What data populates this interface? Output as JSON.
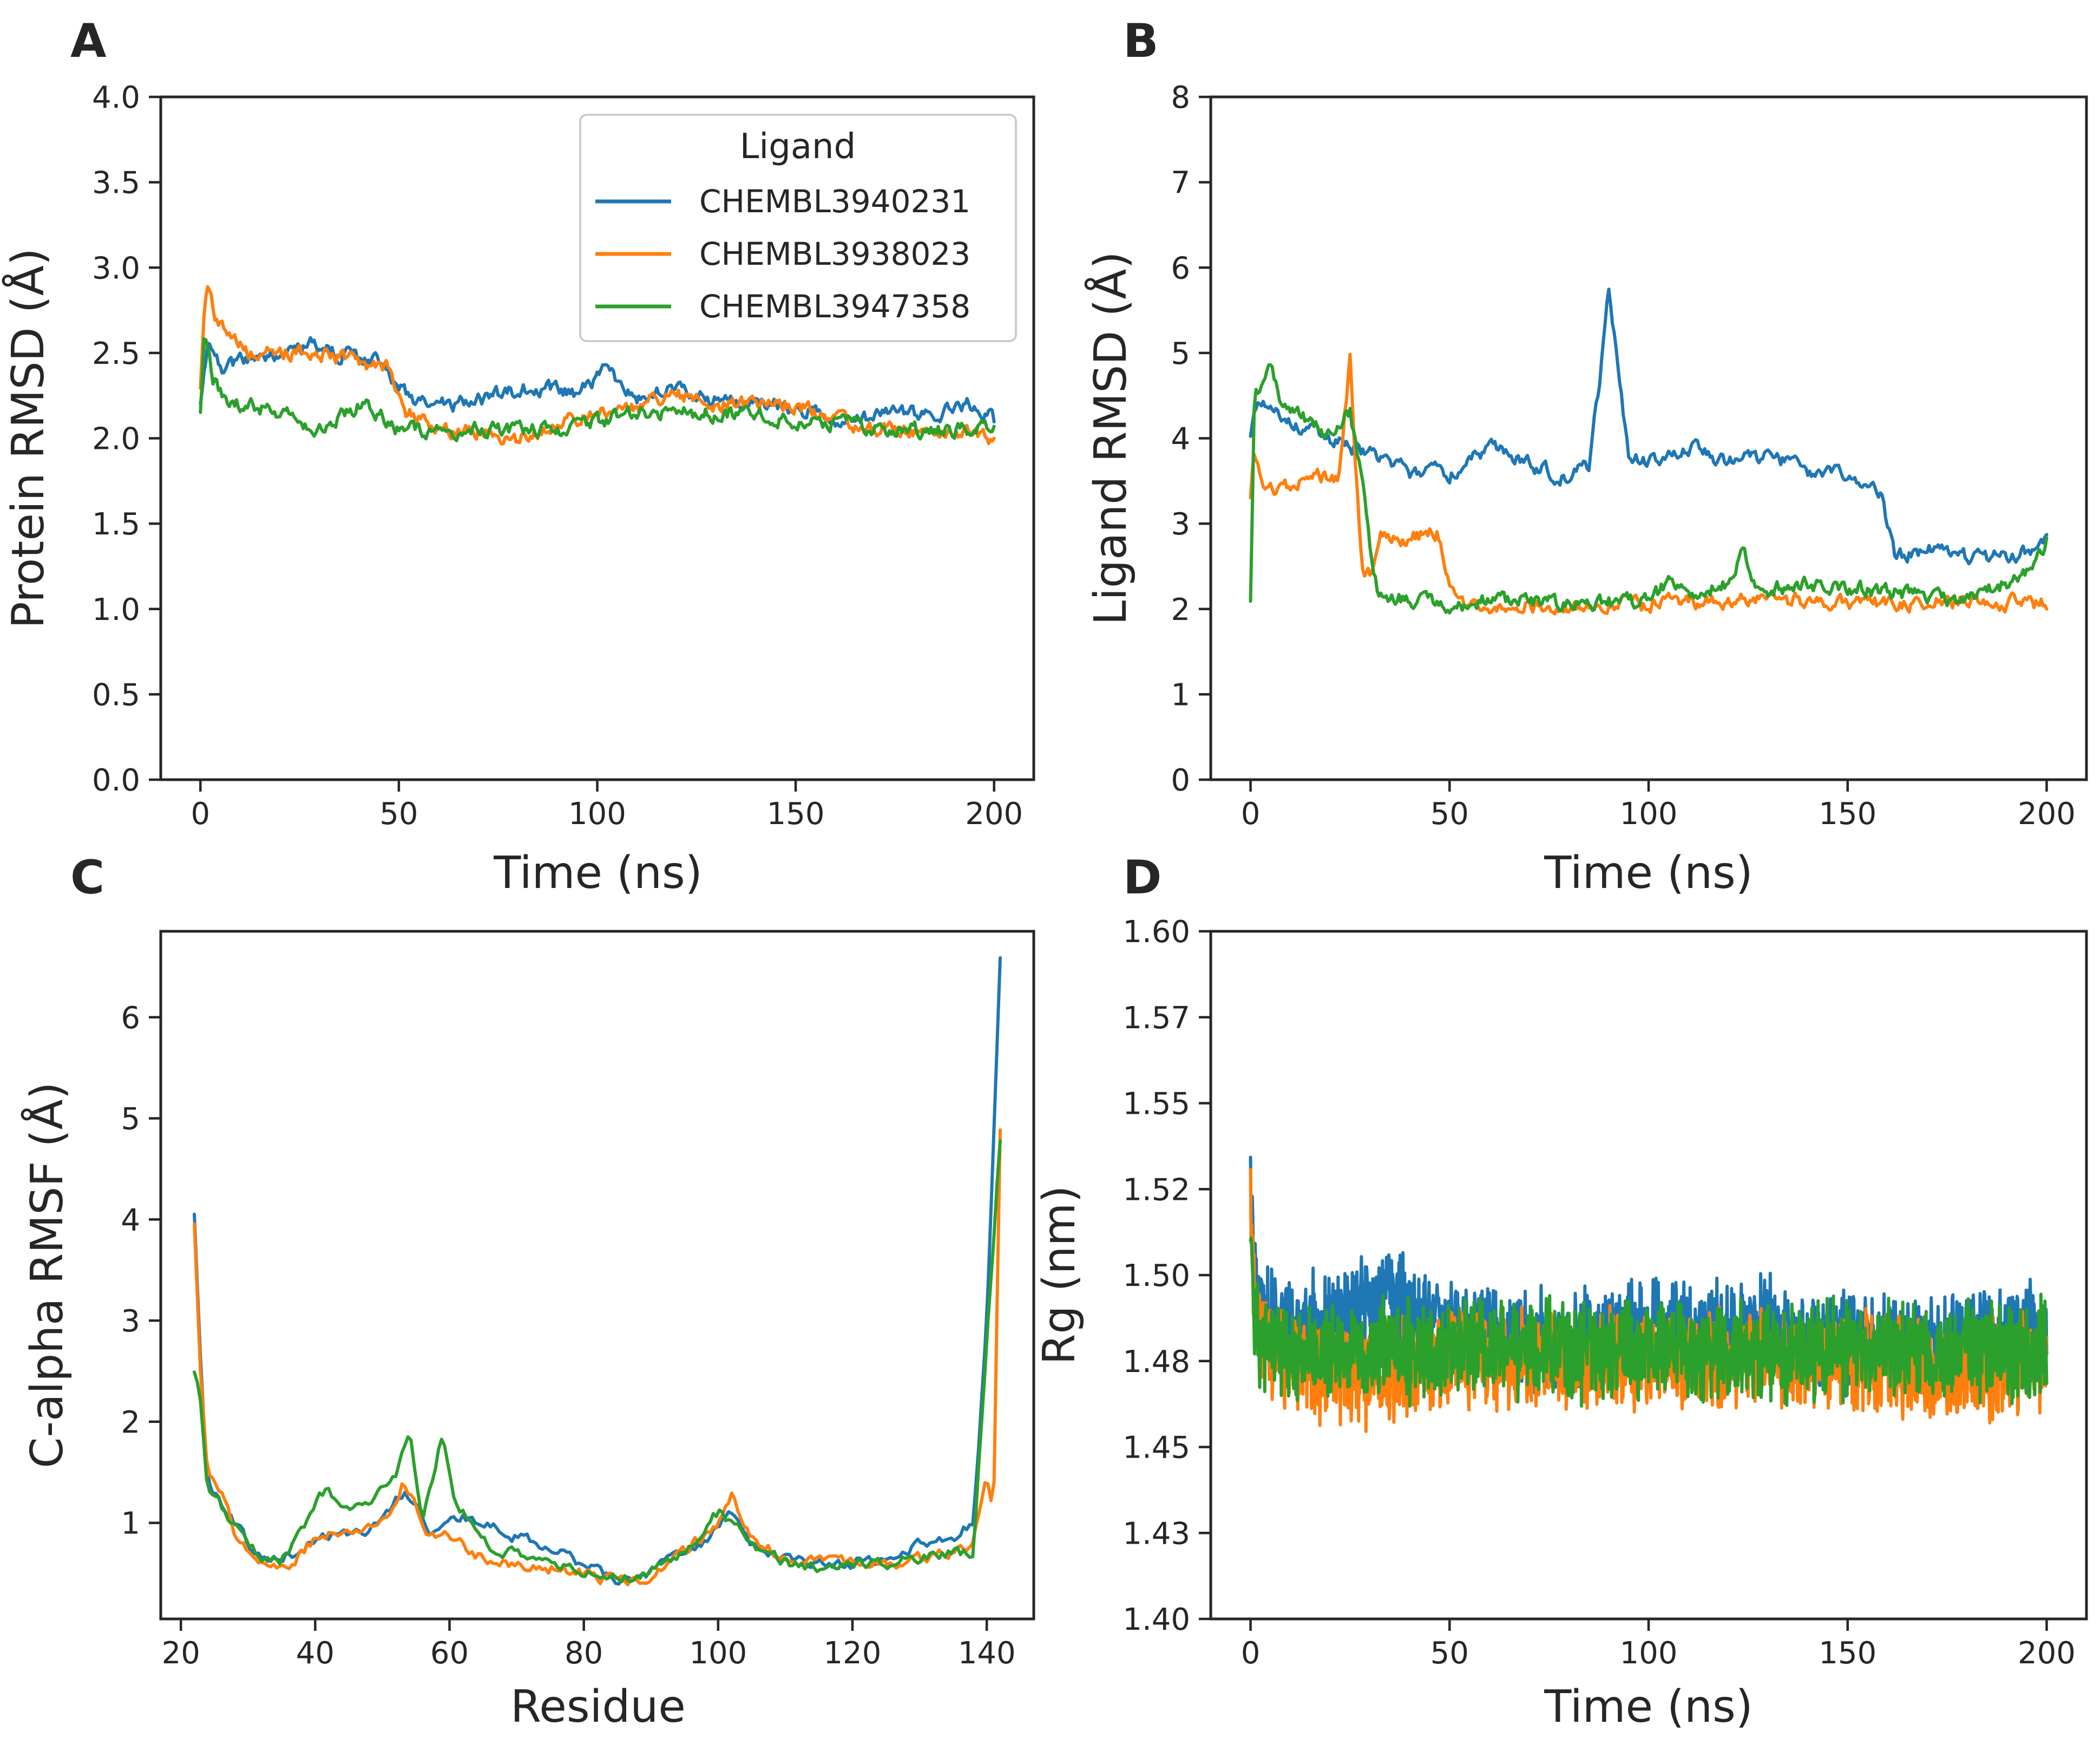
{
  "colors": {
    "CHEMBL3940231": "#1f77b4",
    "CHEMBL3938023": "#ff7f0e",
    "CHEMBL3947358": "#2ca02c"
  },
  "legend": {
    "title": "Ligand",
    "entries": [
      "CHEMBL3940231",
      "CHEMBL3938023",
      "CHEMBL3947358"
    ]
  },
  "chart_data": [
    {
      "panel": "A",
      "type": "line",
      "xlabel": "Time (ns)",
      "ylabel": "Protein RMSD (Å)",
      "xlim": [
        -10,
        210
      ],
      "ylim": [
        0,
        4
      ],
      "xticks": [
        0,
        50,
        100,
        150,
        200
      ],
      "xtick_labels": [
        "0",
        "50",
        "100",
        "150",
        "200"
      ],
      "yticks": [
        0,
        0.5,
        1,
        1.5,
        2,
        2.5,
        3,
        3.5,
        4
      ],
      "ytick_labels": [
        "0.0",
        "0.5",
        "1.0",
        "1.5",
        "2.0",
        "2.5",
        "3.0",
        "3.5",
        "4.0"
      ],
      "noise": 0.045,
      "series": [
        {
          "name": "CHEMBL3940231",
          "x": [
            0,
            2,
            5,
            10,
            20,
            28,
            35,
            45,
            50,
            55,
            65,
            75,
            85,
            95,
            102,
            110,
            115,
            125,
            135,
            145,
            155,
            165,
            175,
            185,
            195,
            200
          ],
          "y": [
            2.2,
            2.55,
            2.4,
            2.45,
            2.5,
            2.55,
            2.5,
            2.45,
            2.3,
            2.2,
            2.2,
            2.25,
            2.3,
            2.25,
            2.4,
            2.2,
            2.3,
            2.25,
            2.2,
            2.2,
            2.15,
            2.1,
            2.15,
            2.15,
            2.2,
            2.1
          ]
        },
        {
          "name": "CHEMBL3938023",
          "x": [
            0,
            1,
            2,
            4,
            8,
            12,
            20,
            30,
            40,
            48,
            52,
            60,
            70,
            80,
            90,
            100,
            110,
            120,
            130,
            140,
            150,
            160,
            170,
            180,
            190,
            200
          ],
          "y": [
            2.3,
            2.75,
            2.85,
            2.7,
            2.6,
            2.5,
            2.5,
            2.5,
            2.45,
            2.4,
            2.15,
            2.05,
            2.05,
            2.0,
            2.1,
            2.15,
            2.2,
            2.25,
            2.2,
            2.2,
            2.2,
            2.1,
            2.05,
            2.05,
            2.05,
            2.0
          ]
        },
        {
          "name": "CHEMBL3947358",
          "x": [
            0,
            1,
            3,
            6,
            10,
            20,
            30,
            40,
            45,
            50,
            60,
            70,
            80,
            90,
            100,
            110,
            120,
            130,
            140,
            150,
            160,
            170,
            180,
            190,
            200
          ],
          "y": [
            2.15,
            2.6,
            2.35,
            2.25,
            2.2,
            2.15,
            2.05,
            2.2,
            2.15,
            2.05,
            2.05,
            2.05,
            2.05,
            2.05,
            2.1,
            2.15,
            2.15,
            2.15,
            2.15,
            2.1,
            2.1,
            2.05,
            2.05,
            2.05,
            2.05
          ]
        }
      ]
    },
    {
      "panel": "B",
      "type": "line",
      "xlabel": "Time (ns)",
      "ylabel": "Ligand RMSD (Å)",
      "xlim": [
        -10,
        210
      ],
      "ylim": [
        0,
        8
      ],
      "xticks": [
        0,
        50,
        100,
        150,
        200
      ],
      "xtick_labels": [
        "0",
        "50",
        "100",
        "150",
        "200"
      ],
      "yticks": [
        0,
        1,
        2,
        3,
        4,
        5,
        6,
        7,
        8
      ],
      "ytick_labels": [
        "0",
        "1",
        "2",
        "3",
        "4",
        "5",
        "6",
        "7",
        "8"
      ],
      "noise": 0.09,
      "series": [
        {
          "name": "CHEMBL3940231",
          "x": [
            0,
            2,
            5,
            10,
            20,
            30,
            40,
            50,
            60,
            70,
            80,
            85,
            88,
            90,
            92,
            95,
            100,
            110,
            120,
            130,
            140,
            150,
            158,
            162,
            170,
            180,
            190,
            200
          ],
          "y": [
            4.0,
            4.5,
            4.3,
            4.2,
            4.0,
            3.8,
            3.6,
            3.6,
            3.9,
            3.7,
            3.5,
            3.7,
            4.8,
            5.7,
            5.0,
            3.8,
            3.7,
            3.9,
            3.7,
            3.8,
            3.6,
            3.6,
            3.4,
            2.6,
            2.7,
            2.6,
            2.6,
            2.8
          ]
        },
        {
          "name": "CHEMBL3938023",
          "x": [
            0,
            1,
            3,
            8,
            15,
            22,
            25,
            27,
            28,
            30,
            33,
            38,
            45,
            47,
            50,
            52,
            60,
            80,
            100,
            120,
            140,
            160,
            180,
            200
          ],
          "y": [
            3.3,
            3.9,
            3.4,
            3.4,
            3.6,
            3.5,
            4.9,
            3.2,
            2.5,
            2.4,
            2.9,
            2.8,
            2.9,
            2.9,
            2.3,
            2.1,
            2.05,
            2.05,
            2.05,
            2.1,
            2.1,
            2.05,
            2.1,
            2.05
          ]
        },
        {
          "name": "CHEMBL3947358",
          "x": [
            0,
            1,
            3,
            5,
            8,
            12,
            20,
            25,
            28,
            30,
            32,
            40,
            50,
            60,
            80,
            100,
            105,
            110,
            120,
            124,
            126,
            140,
            160,
            180,
            195,
            200
          ],
          "y": [
            2.05,
            4.5,
            4.6,
            4.9,
            4.4,
            4.3,
            4.0,
            4.3,
            3.5,
            2.7,
            2.2,
            2.1,
            2.05,
            2.1,
            2.05,
            2.1,
            2.3,
            2.2,
            2.3,
            2.7,
            2.2,
            2.3,
            2.2,
            2.1,
            2.4,
            2.8
          ]
        }
      ]
    },
    {
      "panel": "C",
      "type": "line",
      "xlabel": "Residue",
      "ylabel": "C-alpha RMSF (Å)",
      "xlim": [
        17,
        147
      ],
      "ylim": [
        0.05,
        6.85
      ],
      "xticks": [
        20,
        40,
        60,
        80,
        100,
        120,
        140
      ],
      "xtick_labels": [
        "20",
        "40",
        "60",
        "80",
        "100",
        "120",
        "140"
      ],
      "yticks": [
        1,
        2,
        3,
        4,
        5,
        6
      ],
      "ytick_labels": [
        "1",
        "2",
        "3",
        "4",
        "5",
        "6"
      ],
      "noise": 0.06,
      "series": [
        {
          "name": "CHEMBL3940231",
          "x": [
            22,
            23,
            24,
            26,
            28,
            30,
            32,
            35,
            38,
            40,
            45,
            50,
            53,
            55,
            57,
            60,
            65,
            70,
            75,
            80,
            85,
            90,
            95,
            100,
            102,
            105,
            110,
            115,
            120,
            125,
            130,
            135,
            138,
            140,
            142
          ],
          "y": [
            4.1,
            2.5,
            1.4,
            1.2,
            1.0,
            0.8,
            0.7,
            0.65,
            0.75,
            0.85,
            0.9,
            1.0,
            1.3,
            1.2,
            0.9,
            1.1,
            1.0,
            0.85,
            0.75,
            0.55,
            0.45,
            0.5,
            0.7,
            0.95,
            1.1,
            0.8,
            0.65,
            0.6,
            0.6,
            0.65,
            0.8,
            0.85,
            1.0,
            3.0,
            6.55
          ]
        },
        {
          "name": "CHEMBL3938023",
          "x": [
            22,
            23,
            24,
            26,
            28,
            30,
            32,
            35,
            38,
            40,
            45,
            50,
            53,
            55,
            57,
            60,
            65,
            70,
            75,
            80,
            85,
            90,
            95,
            100,
            102,
            105,
            110,
            115,
            120,
            125,
            130,
            135,
            138,
            140,
            141,
            142
          ],
          "y": [
            4.0,
            2.4,
            1.5,
            1.3,
            0.9,
            0.75,
            0.6,
            0.5,
            0.7,
            0.85,
            0.9,
            1.0,
            1.4,
            1.2,
            0.9,
            0.85,
            0.65,
            0.6,
            0.55,
            0.5,
            0.42,
            0.48,
            0.7,
            1.0,
            1.25,
            0.85,
            0.65,
            0.6,
            0.6,
            0.6,
            0.65,
            0.7,
            0.75,
            1.5,
            1.1,
            4.9
          ]
        },
        {
          "name": "CHEMBL3947358",
          "x": [
            22,
            23,
            24,
            26,
            28,
            30,
            32,
            35,
            38,
            40,
            42,
            45,
            50,
            52,
            54,
            56,
            58,
            59,
            61,
            65,
            70,
            75,
            80,
            85,
            90,
            95,
            100,
            102,
            105,
            110,
            115,
            120,
            125,
            130,
            135,
            138,
            140,
            142
          ],
          "y": [
            2.5,
            2.2,
            1.3,
            1.15,
            1.0,
            0.8,
            0.7,
            0.65,
            0.9,
            1.2,
            1.35,
            1.1,
            1.3,
            1.5,
            1.9,
            1.0,
            1.6,
            1.9,
            1.2,
            0.8,
            0.7,
            0.6,
            0.5,
            0.45,
            0.5,
            0.75,
            1.1,
            1.0,
            0.8,
            0.6,
            0.55,
            0.6,
            0.6,
            0.65,
            0.7,
            0.7,
            2.8,
            4.8
          ]
        }
      ]
    },
    {
      "panel": "D",
      "type": "line",
      "xlabel": "Time (ns)",
      "ylabel": "Rg (nm)",
      "xlim": [
        -10,
        210
      ],
      "ylim": [
        1.4,
        1.6
      ],
      "xticks": [
        0,
        50,
        100,
        150,
        200
      ],
      "xtick_labels": [
        "0",
        "50",
        "100",
        "150",
        "200"
      ],
      "yticks": [
        1.4,
        1.425,
        1.45,
        1.475,
        1.5,
        1.525,
        1.55,
        1.575,
        1.6
      ],
      "ytick_labels": [
        "1.40",
        "1.43",
        "1.45",
        "1.48",
        "1.50",
        "1.52",
        "1.55",
        "1.57",
        "1.60"
      ],
      "noise": 0.012,
      "dense": true,
      "series": [
        {
          "name": "CHEMBL3940231",
          "x": [
            0,
            1,
            3,
            10,
            25,
            35,
            40,
            50,
            75,
            100,
            125,
            150,
            175,
            190,
            200
          ],
          "y": [
            1.53,
            1.5,
            1.49,
            1.485,
            1.49,
            1.495,
            1.49,
            1.485,
            1.48,
            1.485,
            1.485,
            1.48,
            1.48,
            1.485,
            1.485
          ]
        },
        {
          "name": "CHEMBL3938023",
          "x": [
            0,
            1,
            3,
            10,
            25,
            50,
            75,
            100,
            125,
            150,
            175,
            200
          ],
          "y": [
            1.52,
            1.49,
            1.48,
            1.475,
            1.47,
            1.475,
            1.475,
            1.475,
            1.475,
            1.475,
            1.47,
            1.475
          ]
        },
        {
          "name": "CHEMBL3947358",
          "x": [
            0,
            1,
            3,
            10,
            25,
            50,
            75,
            100,
            125,
            150,
            175,
            200
          ],
          "y": [
            1.51,
            1.49,
            1.48,
            1.478,
            1.478,
            1.478,
            1.478,
            1.478,
            1.478,
            1.478,
            1.478,
            1.478
          ]
        }
      ]
    }
  ]
}
